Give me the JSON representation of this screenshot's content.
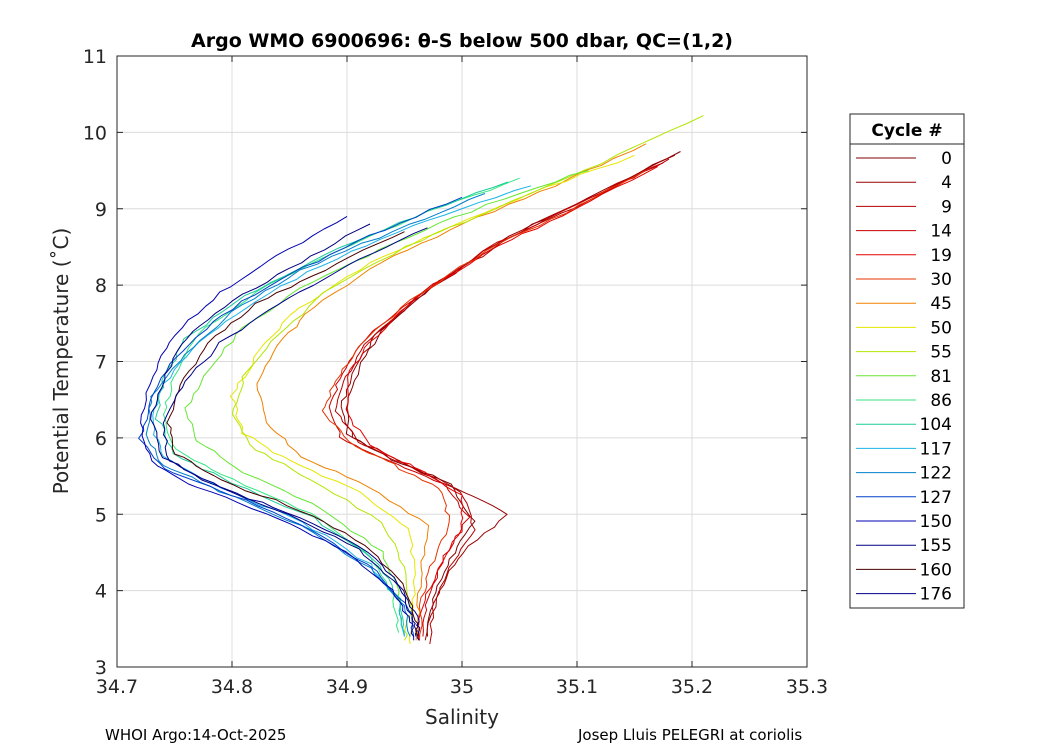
{
  "chart_data": {
    "type": "line",
    "title": "Argo WMO 6900696: θ-S below 500 dbar,  QC=(1,2)",
    "xlabel": "Salinity",
    "ylabel": "Potential Temperature (˚C)",
    "xlim": [
      34.7,
      35.3
    ],
    "ylim": [
      3,
      11
    ],
    "xticks": [
      34.7,
      34.8,
      34.9,
      35,
      35.1,
      35.2,
      35.3
    ],
    "xtick_labels": [
      "34.7",
      "34.8",
      "34.9",
      "35",
      "35.1",
      "35.2",
      "35.3"
    ],
    "yticks": [
      3,
      4,
      5,
      6,
      7,
      8,
      9,
      10,
      11
    ],
    "ytick_labels": [
      "3",
      "4",
      "5",
      "6",
      "7",
      "8",
      "9",
      "10",
      "11"
    ],
    "grid": true,
    "legend": {
      "title": "Cycle #",
      "placement": "right-outside"
    },
    "series": [
      {
        "name": "0",
        "color": "#800000",
        "points": [
          [
            35.19,
            9.75
          ],
          [
            35.12,
            9.2
          ],
          [
            35.05,
            8.7
          ],
          [
            34.98,
            8.05
          ],
          [
            34.93,
            7.4
          ],
          [
            34.91,
            6.9
          ],
          [
            34.9,
            6.45
          ],
          [
            34.9,
            6.05
          ],
          [
            34.94,
            5.72
          ],
          [
            34.99,
            5.4
          ],
          [
            35.01,
            4.9
          ],
          [
            34.99,
            4.4
          ],
          [
            34.975,
            3.9
          ],
          [
            34.97,
            3.4
          ]
        ]
      },
      {
        "name": "4",
        "color": "#990000",
        "points": [
          [
            35.185,
            9.7
          ],
          [
            35.11,
            9.15
          ],
          [
            35.04,
            8.65
          ],
          [
            34.975,
            8.0
          ],
          [
            34.925,
            7.35
          ],
          [
            34.905,
            6.85
          ],
          [
            34.895,
            6.4
          ],
          [
            34.905,
            6.0
          ],
          [
            34.945,
            5.7
          ],
          [
            34.995,
            5.35
          ],
          [
            35.04,
            5.0
          ],
          [
            35.0,
            4.5
          ],
          [
            34.98,
            4.0
          ],
          [
            34.968,
            3.35
          ]
        ]
      },
      {
        "name": "9",
        "color": "#b30000",
        "points": [
          [
            35.18,
            9.65
          ],
          [
            35.11,
            9.1
          ],
          [
            35.04,
            8.6
          ],
          [
            34.97,
            7.95
          ],
          [
            34.92,
            7.3
          ],
          [
            34.9,
            6.8
          ],
          [
            34.89,
            6.35
          ],
          [
            34.91,
            5.95
          ],
          [
            34.95,
            5.65
          ],
          [
            35.0,
            5.3
          ],
          [
            35.01,
            4.8
          ],
          [
            34.99,
            4.3
          ],
          [
            34.975,
            3.8
          ],
          [
            34.972,
            3.3
          ]
        ]
      },
      {
        "name": "14",
        "color": "#cc0000",
        "points": [
          [
            35.175,
            9.6
          ],
          [
            35.1,
            9.05
          ],
          [
            35.03,
            8.55
          ],
          [
            34.965,
            7.9
          ],
          [
            34.915,
            7.3
          ],
          [
            34.895,
            6.85
          ],
          [
            34.885,
            6.4
          ],
          [
            34.895,
            6.0
          ],
          [
            34.935,
            5.7
          ],
          [
            34.985,
            5.4
          ],
          [
            35.005,
            4.95
          ],
          [
            34.985,
            4.45
          ],
          [
            34.97,
            3.9
          ],
          [
            34.966,
            3.4
          ]
        ]
      },
      {
        "name": "19",
        "color": "#e60000",
        "points": [
          [
            35.17,
            9.55
          ],
          [
            35.1,
            9.0
          ],
          [
            35.03,
            8.5
          ],
          [
            34.96,
            7.85
          ],
          [
            34.92,
            7.25
          ],
          [
            34.9,
            6.8
          ],
          [
            34.9,
            6.3
          ],
          [
            34.92,
            5.9
          ],
          [
            34.96,
            5.6
          ],
          [
            35.0,
            5.25
          ],
          [
            35.0,
            4.8
          ],
          [
            34.98,
            4.3
          ],
          [
            34.965,
            3.8
          ],
          [
            34.962,
            3.35
          ]
        ]
      },
      {
        "name": "30",
        "color": "#e63300",
        "points": [
          [
            35.16,
            9.5
          ],
          [
            35.09,
            8.95
          ],
          [
            35.02,
            8.45
          ],
          [
            34.955,
            7.8
          ],
          [
            34.91,
            7.2
          ],
          [
            34.89,
            6.75
          ],
          [
            34.88,
            6.35
          ],
          [
            34.9,
            5.95
          ],
          [
            34.94,
            5.65
          ],
          [
            34.98,
            5.35
          ],
          [
            34.99,
            4.9
          ],
          [
            34.975,
            4.4
          ],
          [
            34.965,
            3.9
          ],
          [
            34.963,
            3.35
          ]
        ]
      },
      {
        "name": "45",
        "color": "#f08000",
        "points": [
          [
            35.16,
            9.85
          ],
          [
            35.08,
            9.3
          ],
          [
            35.0,
            8.8
          ],
          [
            34.93,
            8.3
          ],
          [
            34.87,
            7.7
          ],
          [
            34.84,
            7.2
          ],
          [
            34.82,
            6.7
          ],
          [
            34.83,
            6.2
          ],
          [
            34.86,
            5.75
          ],
          [
            34.92,
            5.35
          ],
          [
            34.97,
            4.85
          ],
          [
            34.965,
            4.3
          ],
          [
            34.962,
            3.8
          ],
          [
            34.96,
            3.35
          ]
        ]
      },
      {
        "name": "50",
        "color": "#e6e600",
        "points": [
          [
            35.15,
            9.7
          ],
          [
            35.06,
            9.2
          ],
          [
            34.98,
            8.7
          ],
          [
            34.91,
            8.2
          ],
          [
            34.85,
            7.6
          ],
          [
            34.82,
            7.05
          ],
          [
            34.8,
            6.55
          ],
          [
            34.81,
            6.05
          ],
          [
            34.85,
            5.7
          ],
          [
            34.91,
            5.3
          ],
          [
            34.955,
            4.8
          ],
          [
            34.958,
            4.2
          ],
          [
            34.958,
            3.7
          ],
          [
            34.955,
            3.3
          ]
        ]
      },
      {
        "name": "55",
        "color": "#b3e600",
        "points": [
          [
            35.21,
            10.22
          ],
          [
            35.12,
            9.6
          ],
          [
            35.03,
            9.0
          ],
          [
            34.95,
            8.5
          ],
          [
            34.88,
            7.9
          ],
          [
            34.84,
            7.35
          ],
          [
            34.81,
            6.8
          ],
          [
            34.8,
            6.3
          ],
          [
            34.82,
            5.85
          ],
          [
            34.87,
            5.45
          ],
          [
            34.93,
            4.9
          ],
          [
            34.95,
            4.3
          ],
          [
            34.955,
            3.75
          ],
          [
            34.95,
            3.35
          ]
        ]
      },
      {
        "name": "81",
        "color": "#66e633",
        "points": [
          [
            35.11,
            9.5
          ],
          [
            35.02,
            9.05
          ],
          [
            34.94,
            8.55
          ],
          [
            34.87,
            8.05
          ],
          [
            34.81,
            7.45
          ],
          [
            34.78,
            6.9
          ],
          [
            34.76,
            6.4
          ],
          [
            34.77,
            5.95
          ],
          [
            34.81,
            5.55
          ],
          [
            34.88,
            5.05
          ],
          [
            34.93,
            4.5
          ],
          [
            34.945,
            4.0
          ],
          [
            34.948,
            3.5
          ]
        ]
      },
      {
        "name": "86",
        "color": "#33e680",
        "points": [
          [
            35.05,
            9.4
          ],
          [
            34.97,
            8.95
          ],
          [
            34.89,
            8.45
          ],
          [
            34.82,
            7.9
          ],
          [
            34.77,
            7.35
          ],
          [
            34.75,
            6.8
          ],
          [
            34.74,
            6.3
          ],
          [
            34.75,
            5.85
          ],
          [
            34.8,
            5.45
          ],
          [
            34.87,
            5.0
          ],
          [
            34.92,
            4.45
          ],
          [
            34.94,
            3.95
          ],
          [
            34.945,
            3.45
          ]
        ]
      },
      {
        "name": "104",
        "color": "#1acc99",
        "points": [
          [
            35.04,
            9.35
          ],
          [
            34.96,
            8.9
          ],
          [
            34.88,
            8.4
          ],
          [
            34.81,
            7.85
          ],
          [
            34.76,
            7.3
          ],
          [
            34.74,
            6.75
          ],
          [
            34.735,
            6.25
          ],
          [
            34.75,
            5.8
          ],
          [
            34.8,
            5.4
          ],
          [
            34.87,
            4.95
          ],
          [
            34.925,
            4.4
          ],
          [
            34.945,
            3.9
          ],
          [
            34.95,
            3.4
          ]
        ]
      },
      {
        "name": "117",
        "color": "#1ab3e6",
        "points": [
          [
            35.06,
            9.3
          ],
          [
            34.97,
            8.85
          ],
          [
            34.89,
            8.35
          ],
          [
            34.82,
            7.8
          ],
          [
            34.77,
            7.25
          ],
          [
            34.74,
            6.7
          ],
          [
            34.73,
            6.2
          ],
          [
            34.74,
            5.75
          ],
          [
            34.79,
            5.35
          ],
          [
            34.86,
            4.9
          ],
          [
            34.92,
            4.35
          ],
          [
            34.945,
            3.85
          ],
          [
            34.95,
            3.4
          ]
        ]
      },
      {
        "name": "122",
        "color": "#0080cc",
        "points": [
          [
            35.02,
            9.2
          ],
          [
            34.94,
            8.7
          ],
          [
            34.86,
            8.2
          ],
          [
            34.8,
            7.65
          ],
          [
            34.76,
            7.1
          ],
          [
            34.73,
            6.55
          ],
          [
            34.725,
            6.05
          ],
          [
            34.74,
            5.65
          ],
          [
            34.79,
            5.3
          ],
          [
            34.86,
            4.85
          ],
          [
            34.92,
            4.3
          ],
          [
            34.95,
            3.8
          ],
          [
            34.955,
            3.4
          ]
        ]
      },
      {
        "name": "127",
        "color": "#0040cc",
        "points": [
          [
            35.0,
            9.15
          ],
          [
            34.92,
            8.65
          ],
          [
            34.85,
            8.15
          ],
          [
            34.79,
            7.6
          ],
          [
            34.75,
            7.05
          ],
          [
            34.73,
            6.5
          ],
          [
            34.72,
            6.0
          ],
          [
            34.74,
            5.6
          ],
          [
            34.8,
            5.25
          ],
          [
            34.87,
            4.8
          ],
          [
            34.925,
            4.25
          ],
          [
            34.955,
            3.75
          ],
          [
            34.958,
            3.4
          ]
        ]
      },
      {
        "name": "150",
        "color": "#0000b3",
        "points": [
          [
            34.9,
            8.9
          ],
          [
            34.84,
            8.4
          ],
          [
            34.79,
            7.9
          ],
          [
            34.75,
            7.35
          ],
          [
            34.73,
            6.8
          ],
          [
            34.72,
            6.2
          ],
          [
            34.73,
            5.7
          ],
          [
            34.77,
            5.35
          ],
          [
            34.84,
            4.95
          ],
          [
            34.9,
            4.5
          ],
          [
            34.94,
            4.0
          ],
          [
            34.955,
            3.6
          ],
          [
            34.958,
            3.35
          ]
        ]
      },
      {
        "name": "155",
        "color": "#000080",
        "points": [
          [
            34.92,
            8.8
          ],
          [
            34.86,
            8.3
          ],
          [
            34.8,
            7.8
          ],
          [
            34.76,
            7.3
          ],
          [
            34.74,
            6.75
          ],
          [
            34.73,
            6.25
          ],
          [
            34.74,
            5.75
          ],
          [
            34.78,
            5.4
          ],
          [
            34.85,
            5.0
          ],
          [
            34.91,
            4.55
          ],
          [
            34.945,
            4.05
          ],
          [
            34.958,
            3.6
          ],
          [
            34.96,
            3.4
          ]
        ]
      },
      {
        "name": "160",
        "color": "#4d0000",
        "points": [
          [
            34.95,
            8.7
          ],
          [
            34.88,
            8.2
          ],
          [
            34.82,
            7.75
          ],
          [
            34.78,
            7.25
          ],
          [
            34.755,
            6.7
          ],
          [
            34.745,
            6.2
          ],
          [
            34.75,
            5.8
          ],
          [
            34.79,
            5.45
          ],
          [
            34.86,
            5.05
          ],
          [
            34.915,
            4.6
          ],
          [
            34.948,
            4.1
          ],
          [
            34.96,
            3.65
          ],
          [
            34.962,
            3.4
          ]
        ]
      },
      {
        "name": "176",
        "color": "#00008c",
        "points": [
          [
            34.97,
            8.75
          ],
          [
            34.9,
            8.25
          ],
          [
            34.84,
            7.75
          ],
          [
            34.79,
            7.25
          ],
          [
            34.76,
            6.75
          ],
          [
            34.74,
            6.2
          ],
          [
            34.745,
            5.7
          ],
          [
            34.79,
            5.35
          ],
          [
            34.86,
            4.95
          ],
          [
            34.92,
            4.5
          ],
          [
            34.95,
            4.0
          ],
          [
            34.962,
            3.6
          ],
          [
            34.963,
            3.35
          ]
        ]
      }
    ]
  },
  "footer": {
    "left": "WHOI Argo:14-Oct-2025",
    "right": "Josep Lluis PELEGRI at coriolis"
  }
}
